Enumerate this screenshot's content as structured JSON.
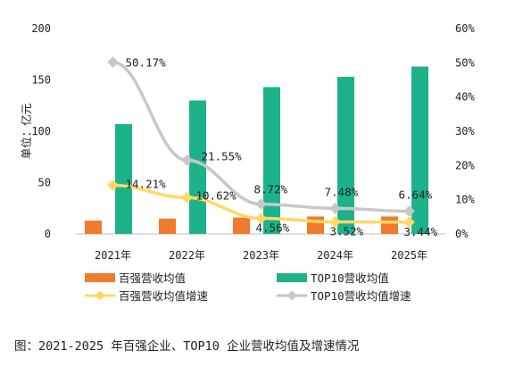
{
  "chart_data": {
    "type": "bar",
    "categories": [
      "2021年",
      "2022年",
      "2023年",
      "2024年",
      "2025年"
    ],
    "series": [
      {
        "name": "百强营收均值",
        "kind": "bar",
        "axis": "left",
        "color": "#F07A2E",
        "values": [
          13,
          15,
          16,
          17,
          17
        ]
      },
      {
        "name": "TOP10营收均值",
        "kind": "bar",
        "axis": "left",
        "color": "#1DB28A",
        "values": [
          107,
          130,
          143,
          153,
          163
        ]
      },
      {
        "name": "百强营收均值增速",
        "kind": "line",
        "axis": "right",
        "color": "#FFD966",
        "values": [
          14.21,
          10.62,
          4.56,
          3.52,
          3.44
        ],
        "labels": [
          "14.21%",
          "10.62%",
          "4.56%",
          "3.52%",
          "3.44%"
        ]
      },
      {
        "name": "TOP10营收均值增速",
        "kind": "line",
        "axis": "right",
        "color": "#C8C8C8",
        "values": [
          50.17,
          21.55,
          8.72,
          7.48,
          6.64
        ],
        "labels": [
          "50.17%",
          "21.55%",
          "8.72%",
          "7.48%",
          "6.64%"
        ]
      }
    ],
    "ylabel": "单位：亿元",
    "ylim": [
      0,
      200
    ],
    "y_ticks": [
      "0",
      "50",
      "100",
      "150",
      "200"
    ],
    "y2lim": [
      0,
      60
    ],
    "y2_ticks": [
      "0%",
      "10%",
      "20%",
      "30%",
      "40%",
      "50%",
      "60%"
    ],
    "legend_position": "bottom",
    "grid": false,
    "caption": "图：2021-2025 年百强企业、TOP10 企业营收均值及增速情况"
  }
}
